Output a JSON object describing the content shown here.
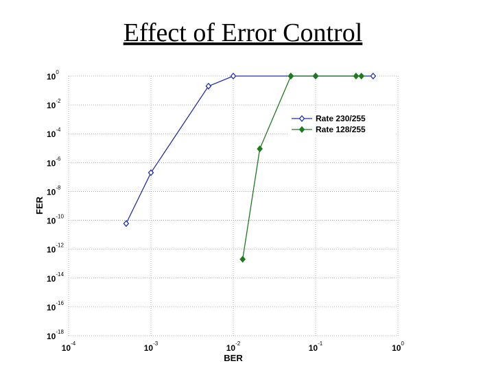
{
  "chart_data": {
    "type": "line",
    "title": "Effect of Error Control",
    "xlabel": "BER",
    "ylabel": "FER",
    "xscale": "log",
    "yscale": "log",
    "xlim": [
      0.0001,
      1
    ],
    "ylim": [
      1e-18,
      1
    ],
    "xticks": [
      {
        "value": 0.0001,
        "label": "10",
        "exponent": "-4"
      },
      {
        "value": 0.001,
        "label": "10",
        "exponent": "-3"
      },
      {
        "value": 0.01,
        "label": "10",
        "exponent": "-2"
      },
      {
        "value": 0.1,
        "label": "10",
        "exponent": "-1"
      },
      {
        "value": 1,
        "label": "10",
        "exponent": "0"
      }
    ],
    "yticks": [
      {
        "value": 1,
        "label": "10",
        "exponent": "0"
      },
      {
        "value": 0.01,
        "label": "10",
        "exponent": "-2"
      },
      {
        "value": 0.0001,
        "label": "10",
        "exponent": "-4"
      },
      {
        "value": 1e-06,
        "label": "10",
        "exponent": "-6"
      },
      {
        "value": 1e-08,
        "label": "10",
        "exponent": "-8"
      },
      {
        "value": 1e-10,
        "label": "10",
        "exponent": "-10"
      },
      {
        "value": 1e-12,
        "label": "10",
        "exponent": "-12"
      },
      {
        "value": 1e-14,
        "label": "10",
        "exponent": "-14"
      },
      {
        "value": 1e-16,
        "label": "10",
        "exponent": "-16"
      },
      {
        "value": 1e-18,
        "label": "10",
        "exponent": "-18"
      }
    ],
    "grid": true,
    "legend": "upper right",
    "series": [
      {
        "name": "Rate 230/255",
        "color": "#1f2fb0",
        "marker": "open-diamond",
        "x": [
          0.0005,
          0.001,
          0.005,
          0.01,
          0.05,
          0.1,
          0.5
        ],
        "values": [
          6e-11,
          2e-07,
          0.2,
          1,
          1,
          1,
          1
        ]
      },
      {
        "name": "Rate 128/255",
        "color": "#1e7a1e",
        "marker": "filled-diamond",
        "x": [
          0.013,
          0.021,
          0.05,
          0.1,
          0.31,
          0.36
        ],
        "values": [
          2e-13,
          9e-06,
          1,
          1,
          1,
          1
        ]
      }
    ]
  }
}
